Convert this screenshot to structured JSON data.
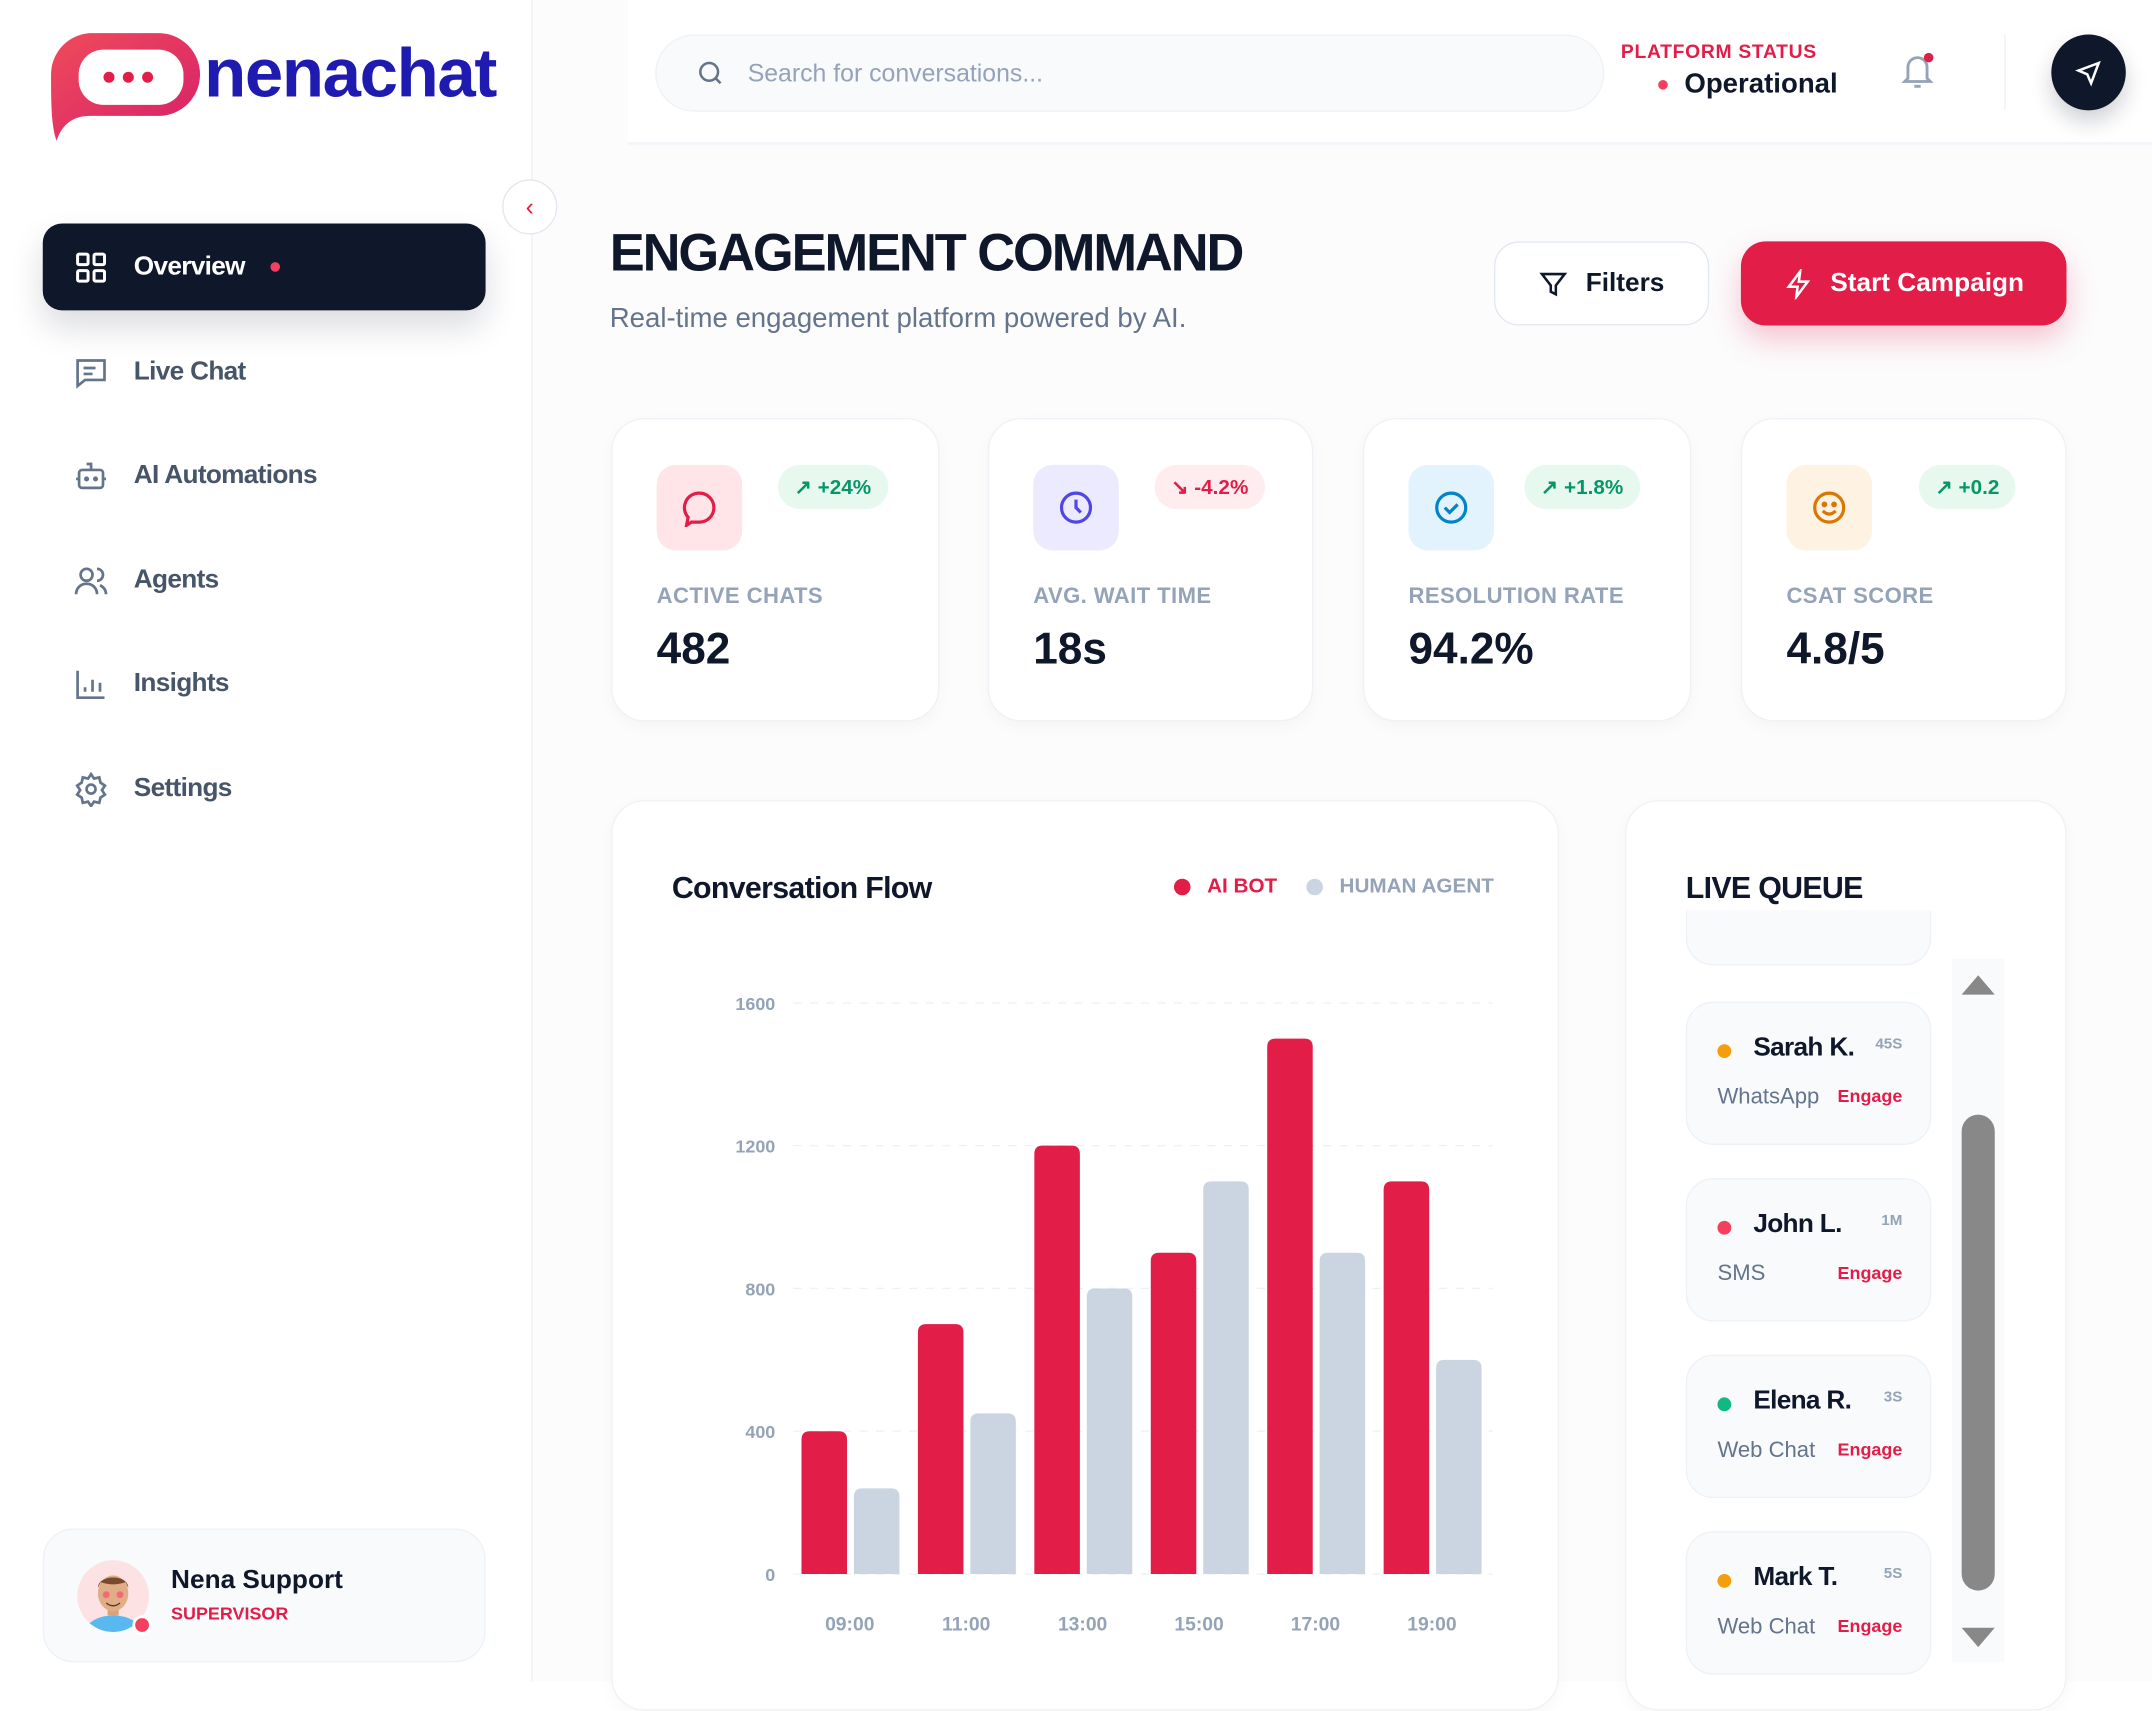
{
  "brand": {
    "name": "nenachat"
  },
  "search": {
    "placeholder": "Search for conversations..."
  },
  "platform_status": {
    "label": "PLATFORM STATUS",
    "value": "Operational"
  },
  "sidebar": {
    "items": [
      {
        "label": "Overview",
        "icon": "grid-icon",
        "active": true
      },
      {
        "label": "Live Chat",
        "icon": "message-square-icon"
      },
      {
        "label": "AI Automations",
        "icon": "bot-icon"
      },
      {
        "label": "Agents",
        "icon": "users-icon"
      },
      {
        "label": "Insights",
        "icon": "bar-chart-icon"
      },
      {
        "label": "Settings",
        "icon": "gear-icon"
      }
    ]
  },
  "user": {
    "name": "Nena Support",
    "role": "SUPERVISOR"
  },
  "page": {
    "title": "ENGAGEMENT COMMAND",
    "subtitle": "Real-time engagement platform powered by AI.",
    "filters_label": "Filters",
    "campaign_label": "Start Campaign"
  },
  "stats": [
    {
      "label": "ACTIVE CHATS",
      "value": "482",
      "change": "↗ +24%",
      "trend": "up"
    },
    {
      "label": "AVG. WAIT TIME",
      "value": "18s",
      "change": "↘ -4.2%",
      "trend": "down"
    },
    {
      "label": "RESOLUTION RATE",
      "value": "94.2%",
      "change": "↗ +1.8%",
      "trend": "up"
    },
    {
      "label": "CSAT SCORE",
      "value": "4.8/5",
      "change": "↗ +0.2",
      "trend": "up"
    }
  ],
  "chart_data": {
    "type": "bar",
    "title": "Conversation Flow",
    "categories": [
      "09:00",
      "11:00",
      "13:00",
      "15:00",
      "17:00",
      "19:00"
    ],
    "series": [
      {
        "name": "AI BOT",
        "color": "#e11d48",
        "values": [
          400,
          700,
          1200,
          900,
          1500,
          1100
        ]
      },
      {
        "name": "HUMAN AGENT",
        "color": "#cbd5e1",
        "values": [
          240,
          450,
          800,
          1100,
          900,
          600
        ]
      }
    ],
    "yticks": [
      0,
      400,
      800,
      1200,
      1600
    ],
    "ylim": [
      0,
      1600
    ],
    "grid": true,
    "legend": "top-right"
  },
  "queue": {
    "title": "LIVE QUEUE",
    "action": "Engage",
    "items": [
      {
        "name": "Sarah K.",
        "time": "45S",
        "channel": "WhatsApp",
        "color": "#f59e0b"
      },
      {
        "name": "John L.",
        "time": "1M",
        "channel": "SMS",
        "color": "#f43f5e"
      },
      {
        "name": "Elena R.",
        "time": "3S",
        "channel": "Web Chat",
        "color": "#10b981"
      },
      {
        "name": "Mark T.",
        "time": "5S",
        "channel": "Web Chat",
        "color": "#f59e0b"
      }
    ]
  }
}
